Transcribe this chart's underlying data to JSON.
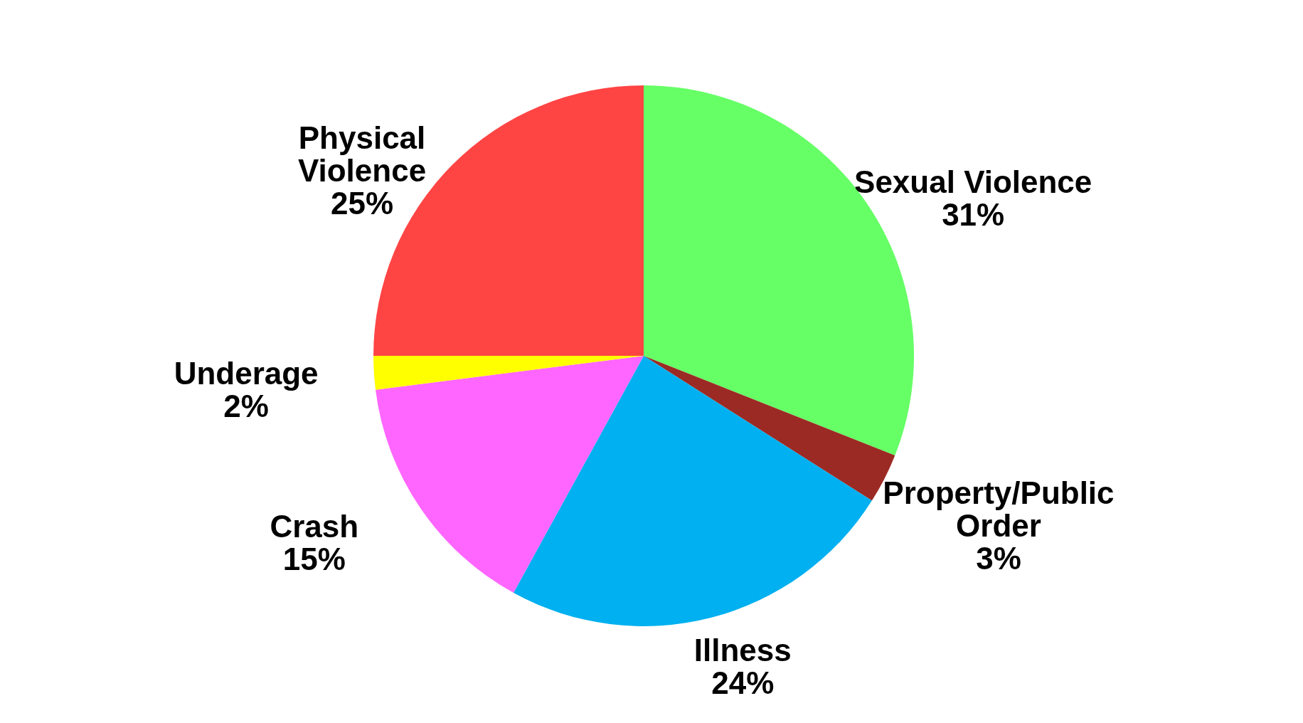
{
  "chart_data": {
    "type": "pie",
    "categories": [
      "Sexual Violence",
      "Property/Public Order",
      "Illness",
      "Crash",
      "Underage",
      "Physical Violence"
    ],
    "values": [
      31,
      3,
      24,
      15,
      2,
      25
    ],
    "colors": [
      "#66ff66",
      "#9c2a24",
      "#00b0f0",
      "#ff66ff",
      "#ffff00",
      "#ff4444"
    ],
    "value_labels": [
      "31%",
      "3%",
      "24%",
      "15%",
      "2%",
      "25%"
    ],
    "legend": false
  }
}
